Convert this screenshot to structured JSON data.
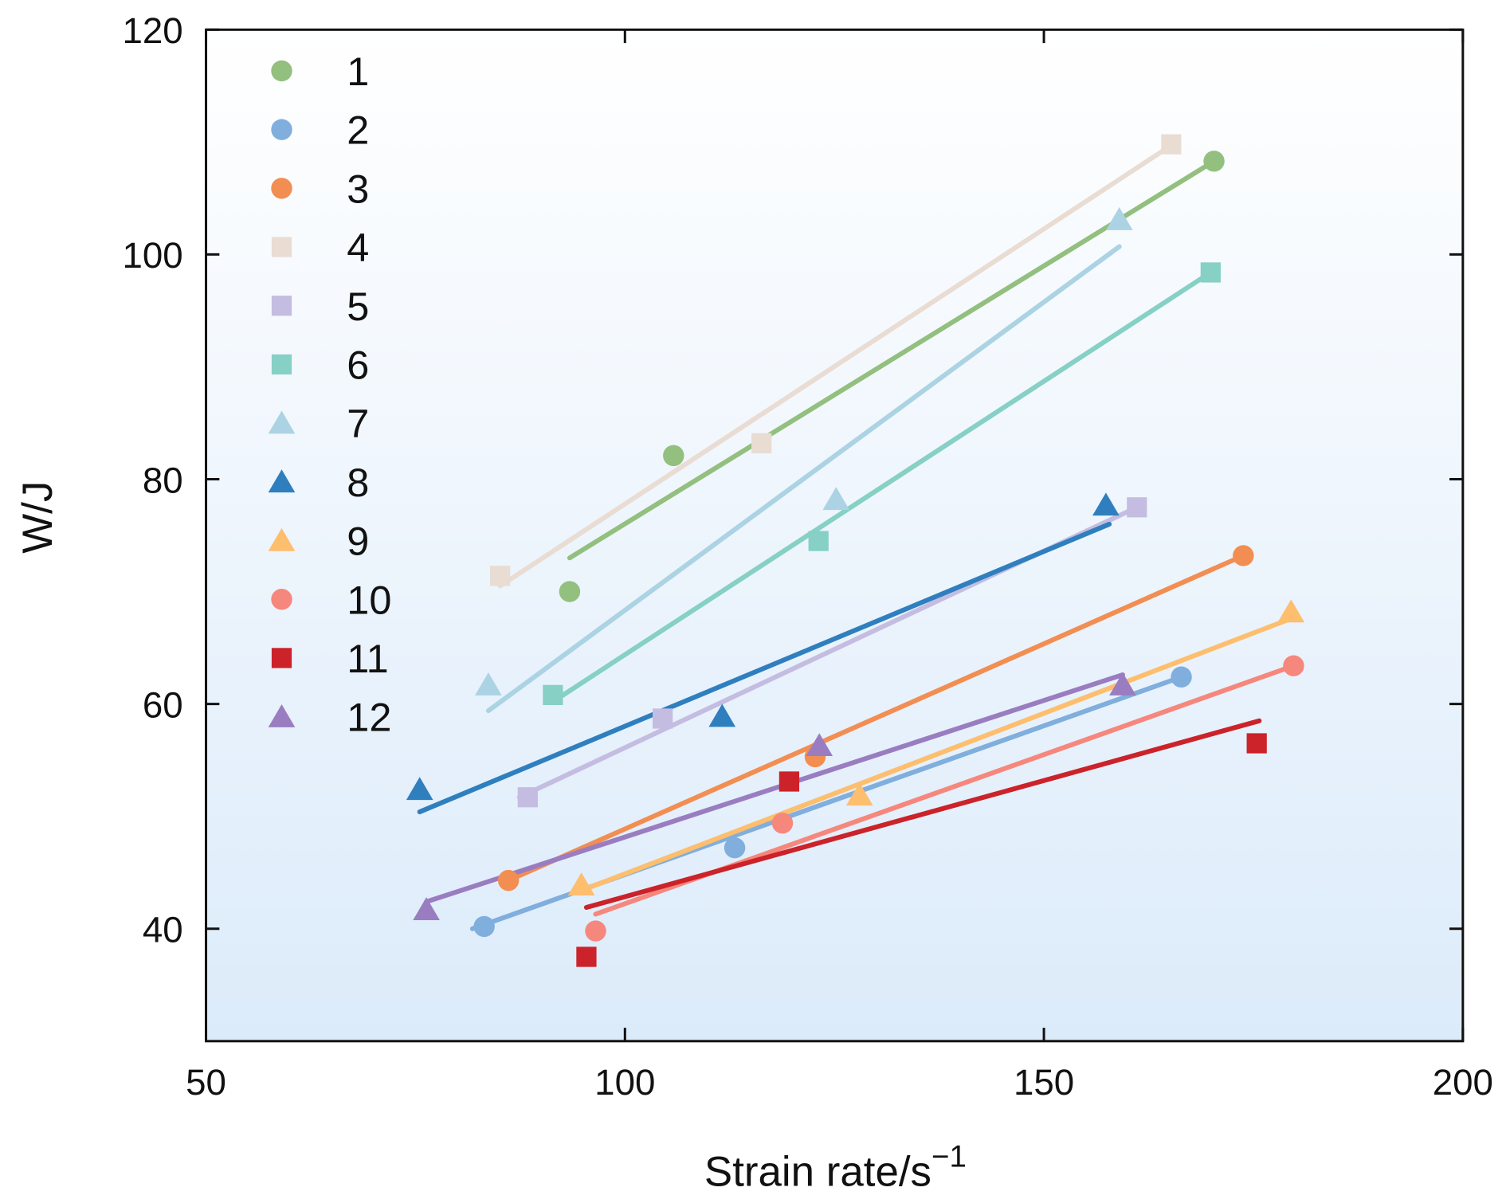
{
  "chart_data": {
    "type": "scatter",
    "title": "",
    "xlabel": "Strain rate/s",
    "xlabel_superscript": "−1",
    "ylabel": "W/J",
    "xlim": [
      50,
      200
    ],
    "ylim": [
      30,
      120
    ],
    "xticks": [
      50,
      100,
      150,
      200
    ],
    "yticks": [
      40,
      60,
      80,
      100,
      120
    ],
    "grid": false,
    "legend_position": "top-left",
    "series": [
      {
        "name": "1",
        "marker": "circle",
        "color": "#93bf7f",
        "x": [
          93.4,
          105.8,
          170.3
        ],
        "y": [
          70.0,
          82.1,
          108.3
        ],
        "fit": [
          [
            93.4,
            73.0
          ],
          [
            170.3,
            108.3
          ]
        ]
      },
      {
        "name": "2",
        "marker": "circle",
        "color": "#80aedd",
        "x": [
          83.2,
          113.1,
          166.4
        ],
        "y": [
          40.2,
          47.2,
          62.4
        ],
        "fit": [
          [
            81.8,
            40.0
          ],
          [
            166.4,
            62.4
          ]
        ]
      },
      {
        "name": "3",
        "marker": "circle",
        "color": "#f28e52",
        "x": [
          86.1,
          122.7,
          173.8
        ],
        "y": [
          44.3,
          55.3,
          73.2
        ],
        "fit": [
          [
            86.1,
            44.3
          ],
          [
            173.8,
            73.2
          ]
        ]
      },
      {
        "name": "4",
        "marker": "square",
        "color": "#e9dcd3",
        "x": [
          85.1,
          116.3,
          165.2
        ],
        "y": [
          71.4,
          83.2,
          109.8
        ],
        "fit": [
          [
            85.1,
            70.5
          ],
          [
            166.0,
            110.1
          ]
        ]
      },
      {
        "name": "5",
        "marker": "square",
        "color": "#c4bde1",
        "x": [
          88.4,
          104.5,
          161.1
        ],
        "y": [
          51.7,
          58.7,
          77.5
        ],
        "fit": [
          [
            87.4,
            51.7
          ],
          [
            161.1,
            77.5
          ]
        ]
      },
      {
        "name": "6",
        "marker": "square",
        "color": "#86d0c5",
        "x": [
          91.4,
          123.1,
          169.9
        ],
        "y": [
          60.8,
          74.5,
          98.4
        ],
        "fit": [
          [
            91.4,
            60.2
          ],
          [
            169.9,
            98.4
          ]
        ]
      },
      {
        "name": "7",
        "marker": "triangle",
        "color": "#abd3e3",
        "x": [
          83.7,
          125.2,
          159.0
        ],
        "y": [
          61.7,
          78.2,
          103.1
        ],
        "fit": [
          [
            83.7,
            59.4
          ],
          [
            159.0,
            100.7
          ]
        ]
      },
      {
        "name": "8",
        "marker": "triangle",
        "color": "#2f7fbf",
        "x": [
          75.5,
          111.6,
          157.4
        ],
        "y": [
          52.4,
          58.9,
          77.7
        ],
        "fit": [
          [
            75.5,
            50.4
          ],
          [
            157.8,
            76.0
          ]
        ]
      },
      {
        "name": "9",
        "marker": "triangle",
        "color": "#fdbe6e",
        "x": [
          94.8,
          128.0,
          179.5
        ],
        "y": [
          43.9,
          51.9,
          68.2
        ],
        "fit": [
          [
            94.8,
            43.4
          ],
          [
            179.5,
            67.6
          ]
        ]
      },
      {
        "name": "10",
        "marker": "circle",
        "color": "#f6877c",
        "x": [
          96.5,
          118.8,
          179.8
        ],
        "y": [
          39.8,
          49.4,
          63.4
        ],
        "fit": [
          [
            96.5,
            41.3
          ],
          [
            179.8,
            63.4
          ]
        ]
      },
      {
        "name": "11",
        "marker": "square",
        "color": "#cc2229",
        "x": [
          95.4,
          119.6,
          175.4
        ],
        "y": [
          37.5,
          53.1,
          56.5
        ],
        "fit": [
          [
            95.4,
            41.9
          ],
          [
            175.7,
            58.5
          ]
        ]
      },
      {
        "name": "12",
        "marker": "triangle",
        "color": "#9a7dc0",
        "x": [
          76.3,
          123.2,
          159.4
        ],
        "y": [
          41.7,
          56.3,
          61.7
        ],
        "fit": [
          [
            76.3,
            42.4
          ],
          [
            159.4,
            62.6
          ]
        ]
      }
    ]
  }
}
